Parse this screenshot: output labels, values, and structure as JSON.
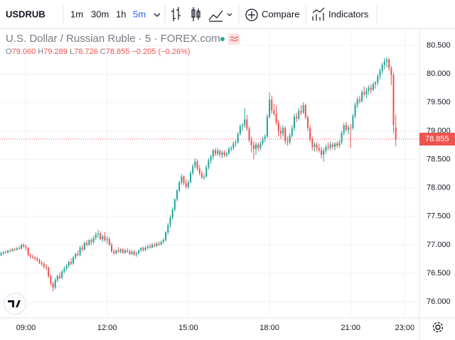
{
  "toolbar": {
    "symbol": "USDRUB",
    "intervals": [
      "1m",
      "30m",
      "1h",
      "5m"
    ],
    "compare": "Compare",
    "indicators": "Indicators"
  },
  "legend": {
    "title": "U.S. Dollar / Russian Ruble · 5 · FOREX.com",
    "ohlc": [
      {
        "key": "O",
        "text": "79.060"
      },
      {
        "key": "H",
        "text": "79.289"
      },
      {
        "key": "L",
        "text": "78.726"
      },
      {
        "key": "C",
        "text": "78.855"
      }
    ],
    "change": "−0.205 (−0.26%)"
  },
  "chart_data": {
    "type": "candlestick",
    "up_color": "#26a69a",
    "down_color": "#ef5350",
    "grid": true,
    "xlim": [
      -0.5,
      185.5
    ],
    "xticks": [
      {
        "value": 11,
        "label": "09:00"
      },
      {
        "value": 47,
        "label": "12:00"
      },
      {
        "value": 83,
        "label": "15:00"
      },
      {
        "value": 119,
        "label": "18:00"
      },
      {
        "value": 155,
        "label": "21:00"
      },
      {
        "value": 179,
        "label": "23:00"
      }
    ],
    "ylim": [
      75.715,
      80.8
    ],
    "yticks": [
      {
        "value": 76,
        "label": "76.000"
      },
      {
        "value": 76.5,
        "label": "76.500"
      },
      {
        "value": 77,
        "label": "77.000"
      },
      {
        "value": 77.5,
        "label": "77.500"
      },
      {
        "value": 78,
        "label": "78.000"
      },
      {
        "value": 78.5,
        "label": "78.500"
      },
      {
        "value": 79,
        "label": "79.000"
      },
      {
        "value": 79.5,
        "label": "79.500"
      },
      {
        "value": 80,
        "label": "80.000"
      },
      {
        "value": 80.5,
        "label": "80.500"
      }
    ],
    "last_price": {
      "value": 78.855,
      "label": "78.855"
    },
    "ohlc": [
      [
        76.82,
        76.88,
        76.8,
        76.85
      ],
      [
        76.85,
        76.89,
        76.83,
        76.87
      ],
      [
        76.87,
        76.9,
        76.84,
        76.86
      ],
      [
        76.86,
        76.91,
        76.85,
        76.9
      ],
      [
        76.9,
        76.93,
        76.87,
        76.89
      ],
      [
        76.89,
        76.94,
        76.88,
        76.92
      ],
      [
        76.92,
        76.95,
        76.89,
        76.91
      ],
      [
        76.91,
        76.96,
        76.9,
        76.94
      ],
      [
        76.94,
        76.98,
        76.92,
        76.93
      ],
      [
        76.93,
        77.02,
        76.92,
        77.0
      ],
      [
        77.0,
        77.03,
        76.95,
        76.97
      ],
      [
        76.97,
        77.0,
        76.9,
        76.95
      ],
      [
        76.95,
        76.96,
        76.8,
        76.82
      ],
      [
        76.82,
        76.85,
        76.76,
        76.79
      ],
      [
        76.79,
        76.83,
        76.75,
        76.78
      ],
      [
        76.78,
        76.8,
        76.72,
        76.76
      ],
      [
        76.76,
        76.79,
        76.7,
        76.73
      ],
      [
        76.73,
        76.76,
        76.66,
        76.68
      ],
      [
        76.68,
        76.72,
        76.62,
        76.66
      ],
      [
        76.66,
        76.7,
        76.58,
        76.62
      ],
      [
        76.62,
        76.66,
        76.55,
        76.6
      ],
      [
        76.6,
        76.62,
        76.42,
        76.45
      ],
      [
        76.45,
        76.48,
        76.28,
        76.32
      ],
      [
        76.32,
        76.35,
        76.18,
        76.25
      ],
      [
        76.25,
        76.42,
        76.22,
        76.38
      ],
      [
        76.38,
        76.48,
        76.34,
        76.45
      ],
      [
        76.45,
        76.52,
        76.4,
        76.42
      ],
      [
        76.42,
        76.56,
        76.4,
        76.53
      ],
      [
        76.53,
        76.62,
        76.5,
        76.58
      ],
      [
        76.58,
        76.66,
        76.54,
        76.63
      ],
      [
        76.63,
        76.72,
        76.6,
        76.7
      ],
      [
        76.7,
        76.76,
        76.64,
        76.67
      ],
      [
        76.67,
        76.8,
        76.65,
        76.78
      ],
      [
        76.78,
        76.86,
        76.74,
        76.84
      ],
      [
        76.84,
        76.9,
        76.8,
        76.82
      ],
      [
        76.82,
        76.98,
        76.8,
        76.95
      ],
      [
        76.95,
        77.0,
        76.88,
        76.92
      ],
      [
        76.92,
        77.06,
        76.9,
        77.03
      ],
      [
        77.03,
        77.08,
        76.97,
        77.0
      ],
      [
        77.0,
        77.1,
        76.98,
        77.08
      ],
      [
        77.08,
        77.12,
        77.0,
        77.05
      ],
      [
        77.05,
        77.16,
        77.02,
        77.12
      ],
      [
        77.12,
        77.22,
        77.08,
        77.18
      ],
      [
        77.18,
        77.26,
        77.12,
        77.2
      ],
      [
        77.2,
        77.24,
        77.08,
        77.1
      ],
      [
        77.1,
        77.18,
        77.05,
        77.15
      ],
      [
        77.15,
        77.22,
        77.06,
        77.08
      ],
      [
        77.08,
        77.15,
        77.02,
        77.1
      ],
      [
        77.1,
        77.14,
        76.98,
        77.0
      ],
      [
        77.0,
        77.04,
        76.86,
        76.88
      ],
      [
        76.88,
        76.92,
        76.82,
        76.85
      ],
      [
        76.85,
        76.92,
        76.83,
        76.9
      ],
      [
        76.9,
        76.96,
        76.86,
        76.88
      ],
      [
        76.88,
        76.94,
        76.85,
        76.92
      ],
      [
        76.92,
        76.95,
        76.84,
        76.86
      ],
      [
        76.86,
        76.93,
        76.84,
        76.9
      ],
      [
        76.9,
        76.94,
        76.86,
        76.88
      ],
      [
        76.88,
        76.92,
        76.82,
        76.84
      ],
      [
        76.84,
        76.9,
        76.82,
        76.88
      ],
      [
        76.88,
        76.91,
        76.8,
        76.83
      ],
      [
        76.83,
        76.88,
        76.79,
        76.85
      ],
      [
        76.85,
        76.92,
        76.83,
        76.9
      ],
      [
        76.9,
        76.96,
        76.87,
        76.94
      ],
      [
        76.94,
        76.97,
        76.88,
        76.91
      ],
      [
        76.91,
        76.98,
        76.89,
        76.95
      ],
      [
        76.95,
        77.0,
        76.92,
        76.97
      ],
      [
        76.97,
        77.02,
        76.93,
        76.95
      ],
      [
        76.95,
        77.03,
        76.94,
        77.0
      ],
      [
        77.0,
        77.04,
        76.96,
        76.98
      ],
      [
        76.98,
        77.05,
        76.96,
        77.02
      ],
      [
        77.02,
        77.06,
        76.98,
        77.0
      ],
      [
        77.0,
        77.08,
        76.99,
        77.05
      ],
      [
        77.05,
        77.12,
        77.02,
        77.08
      ],
      [
        77.08,
        77.24,
        77.06,
        77.22
      ],
      [
        77.22,
        77.38,
        77.18,
        77.35
      ],
      [
        77.35,
        77.52,
        77.3,
        77.48
      ],
      [
        77.48,
        77.66,
        77.44,
        77.62
      ],
      [
        77.62,
        77.82,
        77.58,
        77.8
      ],
      [
        77.8,
        77.98,
        77.76,
        77.95
      ],
      [
        77.95,
        78.12,
        77.92,
        78.1
      ],
      [
        78.1,
        78.24,
        78.06,
        78.2
      ],
      [
        78.2,
        78.22,
        78.05,
        78.08
      ],
      [
        78.08,
        78.15,
        77.98,
        78.02
      ],
      [
        78.02,
        78.14,
        77.98,
        78.1
      ],
      [
        78.1,
        78.3,
        78.08,
        78.26
      ],
      [
        78.26,
        78.42,
        78.22,
        78.38
      ],
      [
        78.38,
        78.52,
        78.34,
        78.46
      ],
      [
        78.46,
        78.5,
        78.3,
        78.34
      ],
      [
        78.34,
        78.4,
        78.22,
        78.26
      ],
      [
        78.26,
        78.3,
        78.15,
        78.18
      ],
      [
        78.18,
        78.24,
        78.14,
        78.2
      ],
      [
        78.2,
        78.4,
        78.18,
        78.36
      ],
      [
        78.36,
        78.52,
        78.32,
        78.48
      ],
      [
        78.48,
        78.58,
        78.42,
        78.55
      ],
      [
        78.55,
        78.68,
        78.5,
        78.66
      ],
      [
        78.66,
        78.7,
        78.56,
        78.6
      ],
      [
        78.6,
        78.7,
        78.56,
        78.65
      ],
      [
        78.65,
        78.68,
        78.54,
        78.58
      ],
      [
        78.58,
        78.66,
        78.52,
        78.62
      ],
      [
        78.62,
        78.66,
        78.54,
        78.57
      ],
      [
        78.57,
        78.64,
        78.54,
        78.6
      ],
      [
        78.6,
        78.72,
        78.58,
        78.68
      ],
      [
        78.68,
        78.74,
        78.64,
        78.7
      ],
      [
        78.7,
        78.82,
        78.66,
        78.78
      ],
      [
        78.78,
        78.84,
        78.72,
        78.8
      ],
      [
        78.8,
        78.98,
        78.78,
        78.95
      ],
      [
        78.95,
        79.12,
        78.92,
        79.08
      ],
      [
        79.08,
        79.14,
        79.0,
        79.1
      ],
      [
        79.1,
        79.4,
        79.06,
        79.2
      ],
      [
        79.2,
        79.28,
        79.0,
        79.04
      ],
      [
        79.04,
        79.08,
        78.8,
        78.84
      ],
      [
        78.84,
        78.9,
        78.62,
        78.75
      ],
      [
        78.75,
        78.82,
        78.5,
        78.68
      ],
      [
        78.68,
        78.8,
        78.58,
        78.76
      ],
      [
        78.76,
        78.8,
        78.64,
        78.7
      ],
      [
        78.7,
        78.82,
        78.66,
        78.78
      ],
      [
        78.78,
        78.9,
        78.74,
        78.86
      ],
      [
        78.86,
        78.94,
        78.8,
        78.9
      ],
      [
        78.9,
        79.3,
        78.88,
        79.25
      ],
      [
        79.25,
        79.68,
        79.22,
        79.55
      ],
      [
        79.55,
        79.62,
        79.3,
        79.36
      ],
      [
        79.36,
        79.48,
        79.26,
        79.3
      ],
      [
        79.3,
        79.45,
        79.1,
        79.15
      ],
      [
        79.15,
        79.2,
        78.9,
        79.0
      ],
      [
        79.0,
        79.08,
        78.86,
        78.95
      ],
      [
        78.95,
        79.1,
        78.9,
        79.05
      ],
      [
        79.05,
        79.08,
        78.76,
        78.82
      ],
      [
        78.82,
        78.9,
        78.74,
        78.8
      ],
      [
        78.8,
        78.96,
        78.76,
        78.92
      ],
      [
        78.92,
        79.1,
        78.88,
        79.05
      ],
      [
        79.05,
        79.3,
        79.0,
        79.25
      ],
      [
        79.25,
        79.32,
        79.15,
        79.22
      ],
      [
        79.22,
        79.4,
        79.18,
        79.35
      ],
      [
        79.35,
        79.45,
        79.28,
        79.32
      ],
      [
        79.32,
        79.5,
        79.3,
        79.45
      ],
      [
        79.45,
        79.48,
        79.2,
        79.24
      ],
      [
        79.24,
        79.28,
        79.0,
        79.05
      ],
      [
        79.05,
        79.1,
        78.8,
        78.85
      ],
      [
        78.85,
        78.9,
        78.66,
        78.72
      ],
      [
        78.72,
        78.8,
        78.64,
        78.76
      ],
      [
        78.76,
        78.8,
        78.64,
        78.7
      ],
      [
        78.7,
        78.78,
        78.62,
        78.66
      ],
      [
        78.66,
        78.72,
        78.52,
        78.58
      ],
      [
        78.58,
        78.7,
        78.46,
        78.65
      ],
      [
        78.65,
        78.76,
        78.6,
        78.72
      ],
      [
        78.72,
        78.8,
        78.66,
        78.7
      ],
      [
        78.7,
        78.82,
        78.66,
        78.76
      ],
      [
        78.76,
        78.8,
        78.68,
        78.72
      ],
      [
        78.72,
        78.8,
        78.66,
        78.78
      ],
      [
        78.78,
        78.82,
        78.7,
        78.74
      ],
      [
        78.74,
        78.84,
        78.7,
        78.8
      ],
      [
        78.8,
        79.0,
        78.76,
        78.96
      ],
      [
        78.96,
        79.14,
        78.92,
        79.1
      ],
      [
        79.1,
        79.16,
        78.98,
        79.02
      ],
      [
        79.02,
        79.1,
        78.94,
        79.06
      ],
      [
        79.06,
        79.12,
        78.7,
        79.05
      ],
      [
        79.05,
        79.3,
        79.02,
        79.26
      ],
      [
        79.26,
        79.5,
        79.22,
        79.46
      ],
      [
        79.46,
        79.6,
        79.4,
        79.55
      ],
      [
        79.55,
        79.62,
        79.48,
        79.52
      ],
      [
        79.52,
        79.72,
        79.5,
        79.68
      ],
      [
        79.68,
        79.78,
        79.6,
        79.64
      ],
      [
        79.64,
        79.76,
        79.58,
        79.7
      ],
      [
        79.7,
        79.8,
        79.64,
        79.76
      ],
      [
        79.76,
        79.82,
        79.66,
        79.72
      ],
      [
        79.72,
        79.86,
        79.7,
        79.82
      ],
      [
        79.82,
        79.88,
        79.74,
        79.85
      ],
      [
        79.85,
        80.0,
        79.8,
        79.96
      ],
      [
        79.96,
        80.1,
        79.9,
        80.05
      ],
      [
        80.05,
        80.2,
        80.0,
        80.16
      ],
      [
        80.16,
        80.28,
        80.08,
        80.22
      ],
      [
        80.22,
        80.3,
        80.12,
        80.25
      ],
      [
        80.25,
        80.28,
        80.06,
        80.1
      ],
      [
        80.1,
        80.14,
        79.8,
        79.98
      ],
      [
        79.98,
        80.02,
        78.96,
        79.1
      ],
      [
        79.06,
        79.289,
        78.726,
        78.855
      ]
    ]
  }
}
